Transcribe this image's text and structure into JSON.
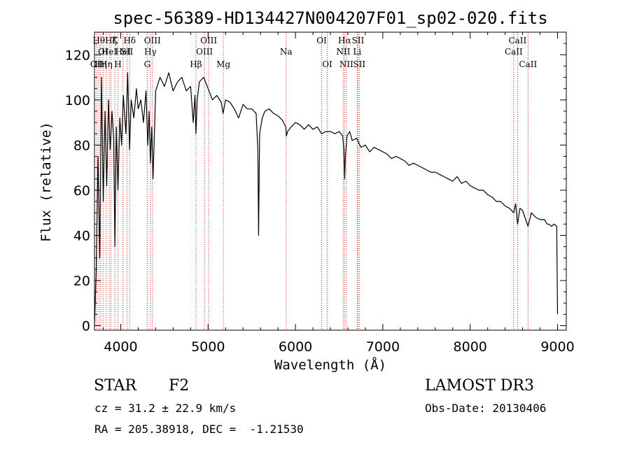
{
  "chart_data": {
    "type": "line",
    "title": "spec-56389-HD134427N004207F01_sp02-020.fits",
    "xlabel": "Wavelength (Å)",
    "ylabel": "Flux (relative)",
    "xlim": [
      3700,
      9100
    ],
    "ylim": [
      -2,
      130
    ],
    "xticks": [
      4000,
      5000,
      6000,
      7000,
      8000,
      9000
    ],
    "yticks": [
      0,
      20,
      40,
      60,
      80,
      100,
      120
    ],
    "series": [
      {
        "name": "flux",
        "x": [
          3700,
          3720,
          3740,
          3760,
          3780,
          3800,
          3820,
          3840,
          3860,
          3880,
          3900,
          3920,
          3933,
          3950,
          3968,
          3990,
          4010,
          4030,
          4060,
          4080,
          4101,
          4120,
          4150,
          4180,
          4200,
          4230,
          4260,
          4290,
          4310,
          4325,
          4340,
          4355,
          4370,
          4400,
          4450,
          4500,
          4550,
          4600,
          4650,
          4700,
          4750,
          4800,
          4830,
          4850,
          4861,
          4875,
          4900,
          4950,
          5000,
          5050,
          5100,
          5150,
          5172,
          5200,
          5250,
          5300,
          5350,
          5400,
          5450,
          5500,
          5550,
          5570,
          5578,
          5590,
          5620,
          5650,
          5700,
          5750,
          5800,
          5850,
          5890,
          5896,
          5910,
          5950,
          6000,
          6050,
          6100,
          6150,
          6200,
          6250,
          6300,
          6350,
          6400,
          6450,
          6500,
          6540,
          6555,
          6563,
          6572,
          6590,
          6620,
          6650,
          6700,
          6750,
          6800,
          6850,
          6900,
          6950,
          7000,
          7050,
          7100,
          7150,
          7200,
          7250,
          7300,
          7350,
          7400,
          7450,
          7500,
          7550,
          7600,
          7650,
          7700,
          7750,
          7800,
          7850,
          7900,
          7950,
          8000,
          8050,
          8100,
          8150,
          8200,
          8250,
          8300,
          8350,
          8400,
          8450,
          8498,
          8520,
          8542,
          8570,
          8600,
          8662,
          8700,
          8750,
          8800,
          8850,
          8880,
          8900,
          8930,
          8960,
          8990,
          9000
        ],
        "y": [
          0,
          25,
          75,
          30,
          110,
          55,
          95,
          62,
          100,
          78,
          95,
          82,
          35,
          88,
          60,
          92,
          80,
          102,
          85,
          112,
          78,
          100,
          92,
          105,
          96,
          100,
          90,
          104,
          80,
          95,
          72,
          88,
          65,
          104,
          110,
          106,
          112,
          104,
          108,
          110,
          104,
          106,
          90,
          102,
          85,
          100,
          108,
          110,
          105,
          100,
          102,
          99,
          94,
          100,
          99,
          96,
          92,
          98,
          96,
          96,
          94,
          78,
          40,
          85,
          92,
          95,
          96,
          94,
          93,
          91,
          88,
          84,
          86,
          88,
          90,
          89,
          87,
          89,
          87,
          88,
          85,
          86,
          86,
          85,
          86,
          84,
          78,
          65,
          75,
          84,
          86,
          82,
          83,
          79,
          80,
          77,
          79,
          78,
          77,
          76,
          74,
          75,
          74,
          73,
          71,
          72,
          71,
          70,
          69,
          68,
          68,
          67,
          66,
          65,
          64,
          66,
          63,
          64,
          62,
          61,
          60,
          60,
          58,
          57,
          55,
          55,
          53,
          52,
          50,
          54,
          45,
          52,
          51,
          44,
          50,
          48,
          47,
          47,
          45,
          45,
          44,
          45,
          44,
          5
        ]
      }
    ],
    "vertical_lines": [
      {
        "wl": 3727,
        "label": "OII",
        "row": 3
      },
      {
        "wl": 3750,
        "label": "Hθ",
        "row": 1
      },
      {
        "wl": 3771,
        "label": "Hη",
        "row": 3
      },
      {
        "wl": 3798,
        "label": "OI",
        "row": 2
      },
      {
        "wl": 3835,
        "label": "Hη",
        "row": 3
      },
      {
        "wl": 3869,
        "label": "HeI",
        "row": 2
      },
      {
        "wl": 3889,
        "label": "Hζ",
        "row": 1
      },
      {
        "wl": 3934,
        "label": "K",
        "row": 1
      },
      {
        "wl": 3968,
        "label": "H",
        "row": 3
      },
      {
        "wl": 4026,
        "label": "HeI",
        "row": 2
      },
      {
        "wl": 4072,
        "label": "SII",
        "row": 2
      },
      {
        "wl": 4102,
        "label": "Hδ",
        "row": 1
      },
      {
        "wl": 4304,
        "label": "G",
        "row": 3
      },
      {
        "wl": 4340,
        "label": "Hγ",
        "row": 2
      },
      {
        "wl": 4363,
        "label": "OIII",
        "row": 1
      },
      {
        "wl": 4861,
        "label": "Hβ",
        "row": 3
      },
      {
        "wl": 4959,
        "label": "OIII",
        "row": 2
      },
      {
        "wl": 5007,
        "label": "OIII",
        "row": 1
      },
      {
        "wl": 5175,
        "label": "Mg",
        "row": 3
      },
      {
        "wl": 5893,
        "label": "Na",
        "row": 2
      },
      {
        "wl": 6300,
        "label": "OI",
        "row": 1
      },
      {
        "wl": 6364,
        "label": "OI",
        "row": 3
      },
      {
        "wl": 6548,
        "label": "NII",
        "row": 2
      },
      {
        "wl": 6563,
        "label": "Hα",
        "row": 1
      },
      {
        "wl": 6583,
        "label": "NII",
        "row": 3
      },
      {
        "wl": 6707,
        "label": "Li",
        "row": 2
      },
      {
        "wl": 6716,
        "label": "SII",
        "row": 1
      },
      {
        "wl": 6731,
        "label": "SII",
        "row": 3
      },
      {
        "wl": 8498,
        "label": "CaII",
        "row": 2
      },
      {
        "wl": 8542,
        "label": "CaII",
        "row": 1
      },
      {
        "wl": 8662,
        "label": "CaII",
        "row": 3
      }
    ]
  },
  "info": {
    "object_class": "STAR",
    "subclass": "F2",
    "survey": "LAMOST DR3",
    "cz": "cz = 31.2 ± 22.9 km/s",
    "obs_date": "Obs-Date: 20130406",
    "coords": "RA = 205.38918, DEC =  -1.21530"
  },
  "colors": {
    "line": "#000000",
    "marker": "#cc2222"
  }
}
